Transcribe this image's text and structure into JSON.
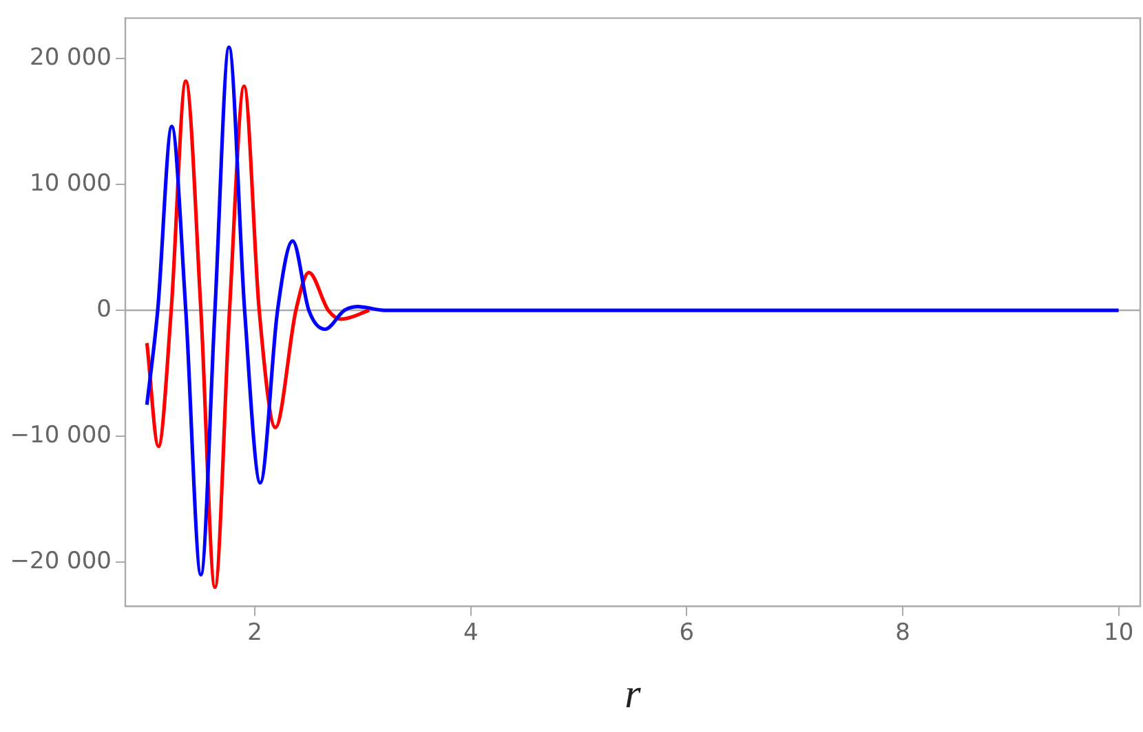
{
  "chart_data": {
    "type": "line",
    "xlabel": "r",
    "xlim": [
      0.8,
      10.2
    ],
    "xticks": [
      2,
      4,
      6,
      8,
      10
    ],
    "ylim": [
      -23500,
      23200
    ],
    "yticks": [
      {
        "value": -20000,
        "label": "−20 000"
      },
      {
        "value": -10000,
        "label": "−10 000"
      },
      0,
      {
        "value": 10000,
        "label": "10 000"
      },
      {
        "value": 20000,
        "label": "20 000"
      }
    ],
    "grid": false,
    "legend": false,
    "marker": "none",
    "line_style": "solid",
    "ref_lines": [
      {
        "axis": "y",
        "value": 0,
        "color": "#aaaaaa"
      }
    ],
    "series": [
      {
        "color": "#ff0000",
        "x": [
          1.0,
          1.107,
          1.225,
          1.36,
          1.5,
          1.63,
          1.765,
          1.9,
          2.04,
          2.19,
          2.38,
          2.5,
          2.68,
          2.8,
          3.06
        ],
        "values": [
          -2600,
          -10800,
          0,
          18200,
          0,
          -22000,
          0,
          17800,
          0,
          -9300,
          0,
          3000,
          0,
          -700,
          0
        ]
      },
      {
        "color": "#0000ff",
        "x": [
          1.0,
          1.1,
          1.23,
          1.36,
          1.5,
          1.63,
          1.76,
          1.905,
          2.05,
          2.21,
          2.35,
          2.5,
          2.65,
          2.83,
          2.95,
          3.2,
          5,
          7,
          10
        ],
        "values": [
          -7500,
          0,
          14600,
          0,
          -21000,
          0,
          20900,
          0,
          -13700,
          0,
          5500,
          0,
          -1500,
          0,
          300,
          0,
          0,
          0,
          0
        ]
      }
    ]
  }
}
